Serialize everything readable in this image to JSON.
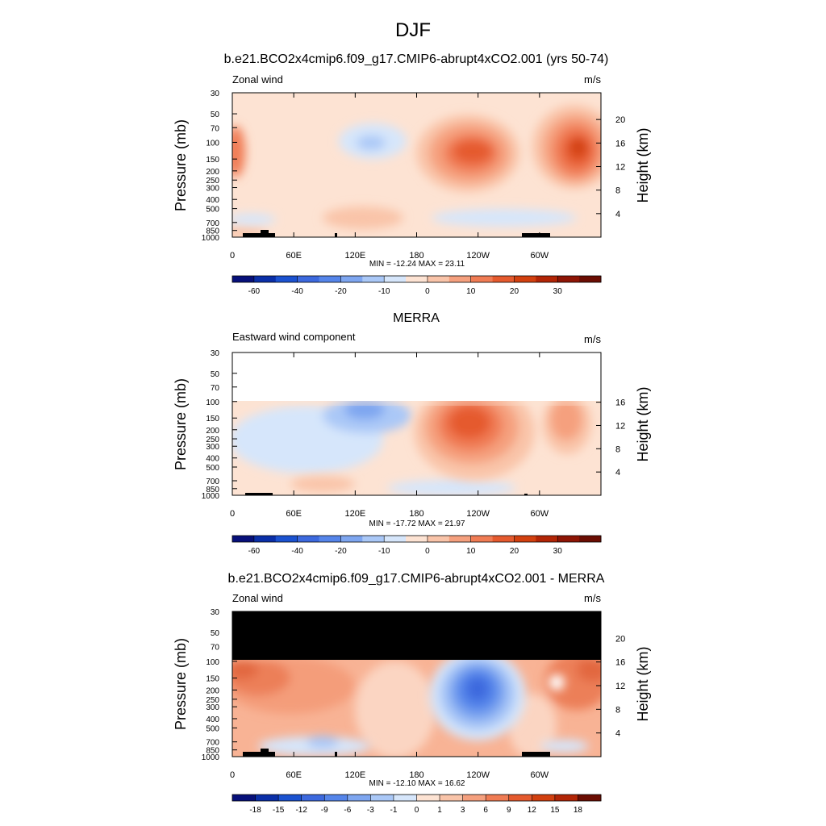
{
  "title": "DJF",
  "panels": [
    {
      "header": "b.e21.BCO2x4cmip6.f09_g17.CMIP6-abrupt4xCO2.001 (yrs 50-74)",
      "left_label": "Zonal wind",
      "right_label": "m/s",
      "ylabel": "Pressure (mb)",
      "ylabel_right": "Height (km)",
      "stats": "MIN = -12.24  MAX =  23.11",
      "height_ticks": [
        "4",
        "8",
        "12",
        "16",
        "20"
      ],
      "colorbar_labels": [
        "-60",
        "-40",
        "-20",
        "-10",
        "0",
        "10",
        "20",
        "30"
      ]
    },
    {
      "header": "MERRA",
      "left_label": "Eastward wind component",
      "right_label": "m/s",
      "ylabel": "Pressure (mb)",
      "ylabel_right": "Height (km)",
      "stats": "MIN = -17.72  MAX =  21.97",
      "height_ticks": [
        "4",
        "8",
        "12",
        "16"
      ],
      "colorbar_labels": [
        "-60",
        "-40",
        "-20",
        "-10",
        "0",
        "10",
        "20",
        "30"
      ]
    },
    {
      "header": "b.e21.BCO2x4cmip6.f09_g17.CMIP6-abrupt4xCO2.001 - MERRA",
      "left_label": "Zonal wind",
      "right_label": "m/s",
      "ylabel": "Pressure (mb)",
      "ylabel_right": "Height (km)",
      "stats": "MIN = -12.10  MAX =  16.62",
      "height_ticks": [
        "4",
        "8",
        "12",
        "16",
        "20"
      ],
      "colorbar_labels": [
        "-18",
        "-15",
        "-12",
        "-9",
        "-6",
        "-3",
        "-1",
        "0",
        "1",
        "3",
        "6",
        "9",
        "12",
        "15",
        "18"
      ]
    }
  ],
  "pressure_ticks": [
    "30",
    "50",
    "70",
    "100",
    "150",
    "200",
    "250",
    "300",
    "400",
    "500",
    "700",
    "850",
    "1000"
  ],
  "lon_ticks": [
    "0",
    "60E",
    "120E",
    "180",
    "120W",
    "60W"
  ],
  "chart_data": [
    {
      "type": "heatmap",
      "title": "b.e21.BCO2x4cmip6.f09_g17.CMIP6-abrupt4xCO2.001 (yrs 50-74)",
      "variable": "Zonal wind",
      "units": "m/s",
      "xlabel": "",
      "ylabel": "Pressure (mb)",
      "min": -12.24,
      "max": 23.11,
      "features": [
        {
          "lon": 140,
          "p": 100,
          "value": -6
        },
        {
          "lon": 234,
          "p": 150,
          "value": 18
        },
        {
          "lon": 323,
          "p": 120,
          "value": 23
        },
        {
          "lon": 0,
          "p": 110,
          "value": 15
        },
        {
          "lon": 230,
          "p": 700,
          "value": -4
        }
      ]
    },
    {
      "type": "heatmap",
      "title": "MERRA",
      "variable": "Eastward wind component",
      "units": "m/s",
      "xlabel": "",
      "ylabel": "Pressure (mb)",
      "min": -17.72,
      "max": 21.97,
      "features": [
        {
          "lon": 238,
          "p": 170,
          "value": 22
        },
        {
          "lon": 315,
          "p": 160,
          "value": 12
        },
        {
          "lon": 140,
          "p": 130,
          "value": -12
        },
        {
          "lon": 180,
          "p": 300,
          "value": -4
        }
      ]
    },
    {
      "type": "heatmap",
      "title": "b.e21.BCO2x4cmip6.f09_g17.CMIP6-abrupt4xCO2.001 - MERRA",
      "variable": "Zonal wind",
      "units": "m/s",
      "xlabel": "",
      "ylabel": "Pressure (mb)",
      "min": -12.1,
      "max": 16.62,
      "features": [
        {
          "lon": 238,
          "p": 200,
          "value": -12
        },
        {
          "lon": 20,
          "p": 150,
          "value": 10
        },
        {
          "lon": 340,
          "p": 110,
          "value": 16
        },
        {
          "lon": 90,
          "p": 800,
          "value": -2
        }
      ]
    }
  ]
}
